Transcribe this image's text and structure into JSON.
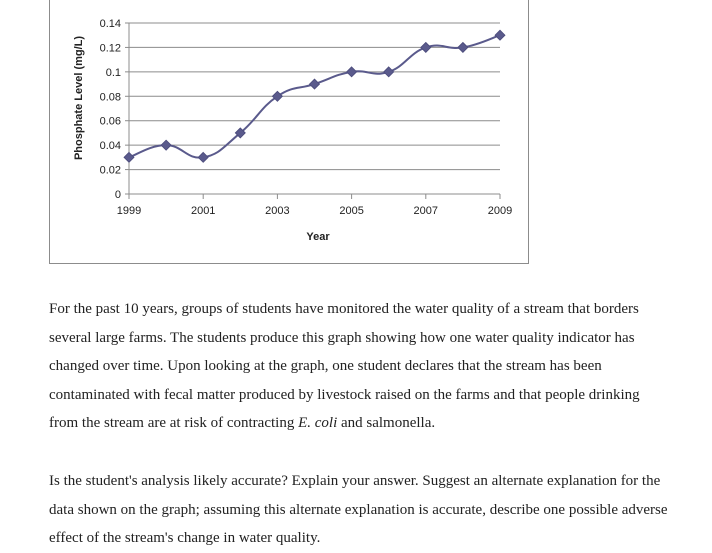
{
  "chart_data": {
    "type": "line",
    "xlabel": "Year",
    "ylabel": "Phosphate Level (mg/L)",
    "x": [
      1999,
      2000,
      2001,
      2002,
      2003,
      2004,
      2005,
      2006,
      2007,
      2008,
      2009
    ],
    "series": [
      {
        "values": [
          0.03,
          0.04,
          0.03,
          0.05,
          0.08,
          0.09,
          0.1,
          0.1,
          0.12,
          0.12,
          0.13
        ]
      }
    ],
    "xlim": [
      1999,
      2009
    ],
    "ylim": [
      0,
      0.14
    ],
    "x_ticks": [
      "1999",
      "2001",
      "2003",
      "2005",
      "2007",
      "2009"
    ],
    "y_ticks": [
      "0",
      "0.02",
      "0.04",
      "0.06",
      "0.08",
      "0.1",
      "0.12",
      "0.14"
    ],
    "grid": "horizontal",
    "legend": "none",
    "line_color": "#5a5a8c",
    "marker_color": "#5a5a8c",
    "marker": "diamond"
  },
  "passage": {
    "part1": "For the past 10 years, groups of students have monitored the water quality of a stream that borders several large farms. The students produce this graph showing how one water quality indicator has changed over time. Upon looking at the graph, one student declares that the stream has been contaminated with fecal matter produced by livestock raised on the farms and that people drinking from the stream are at risk of contracting ",
    "italic": "E. coli",
    "part2": " and salmonella."
  },
  "question": {
    "text": "Is the student's analysis likely accurate? Explain your answer. Suggest an alternate explanation for the data shown on the graph; assuming this alternate explanation is accurate, describe one possible adverse effect of the stream's change in water quality."
  }
}
